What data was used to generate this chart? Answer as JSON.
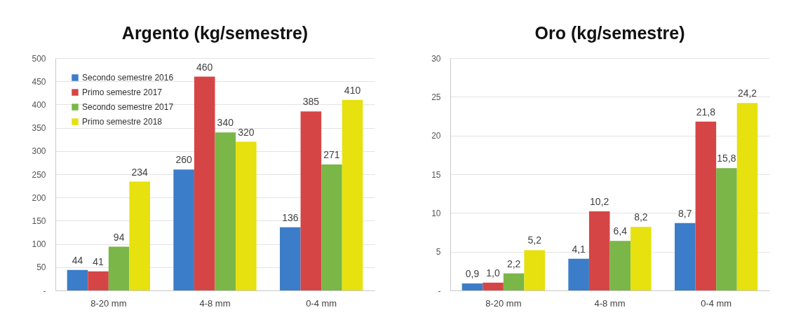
{
  "chart_data": [
    {
      "type": "bar",
      "title": "Argento (kg/semestre)",
      "categories": [
        "8-20 mm",
        "4-8 mm",
        "0-4 mm"
      ],
      "series": [
        {
          "name": "Secondo semestre 2016",
          "color": "#3b7dc8",
          "values": [
            44,
            260,
            136
          ]
        },
        {
          "name": "Primo semestre 2017",
          "color": "#d64545",
          "values": [
            41,
            460,
            385
          ]
        },
        {
          "name": "Secondo semestre 2017",
          "color": "#7ab648",
          "values": [
            94,
            340,
            271
          ]
        },
        {
          "name": "Primo semestre 2018",
          "color": "#e6e10f",
          "values": [
            234,
            320,
            410
          ]
        }
      ],
      "ylim": [
        0,
        500
      ],
      "yticks": [
        {
          "value": 0,
          "label": "-"
        },
        50,
        100,
        150,
        200,
        250,
        300,
        350,
        400,
        450,
        500
      ],
      "grid": "y",
      "legend": "top left",
      "data_labels": true
    },
    {
      "type": "bar",
      "title": "Oro (kg/semestre)",
      "categories": [
        "8-20 mm",
        "4-8 mm",
        "0-4 mm"
      ],
      "series": [
        {
          "name": "Secondo semestre 2016",
          "color": "#3b7dc8",
          "values": [
            0.9,
            4.1,
            8.7
          ],
          "value_labels": [
            "0,9",
            "4,1",
            "8,7"
          ]
        },
        {
          "name": "Primo semestre 2017",
          "color": "#d64545",
          "values": [
            1.0,
            10.2,
            21.8
          ],
          "value_labels": [
            "1,0",
            "10,2",
            "21,8"
          ]
        },
        {
          "name": "Secondo semestre 2017",
          "color": "#7ab648",
          "values": [
            2.2,
            6.4,
            15.8
          ],
          "value_labels": [
            "2,2",
            "6,4",
            "15,8"
          ]
        },
        {
          "name": "Primo semestre 2018",
          "color": "#e6e10f",
          "values": [
            5.2,
            8.2,
            24.2
          ],
          "value_labels": [
            "5,2",
            "8,2",
            "24,2"
          ]
        }
      ],
      "ylim": [
        0,
        30
      ],
      "yticks": [
        {
          "value": 0,
          "label": "-"
        },
        5,
        10,
        15,
        20,
        25,
        30
      ],
      "grid": "y",
      "legend": "top left"
    }
  ]
}
